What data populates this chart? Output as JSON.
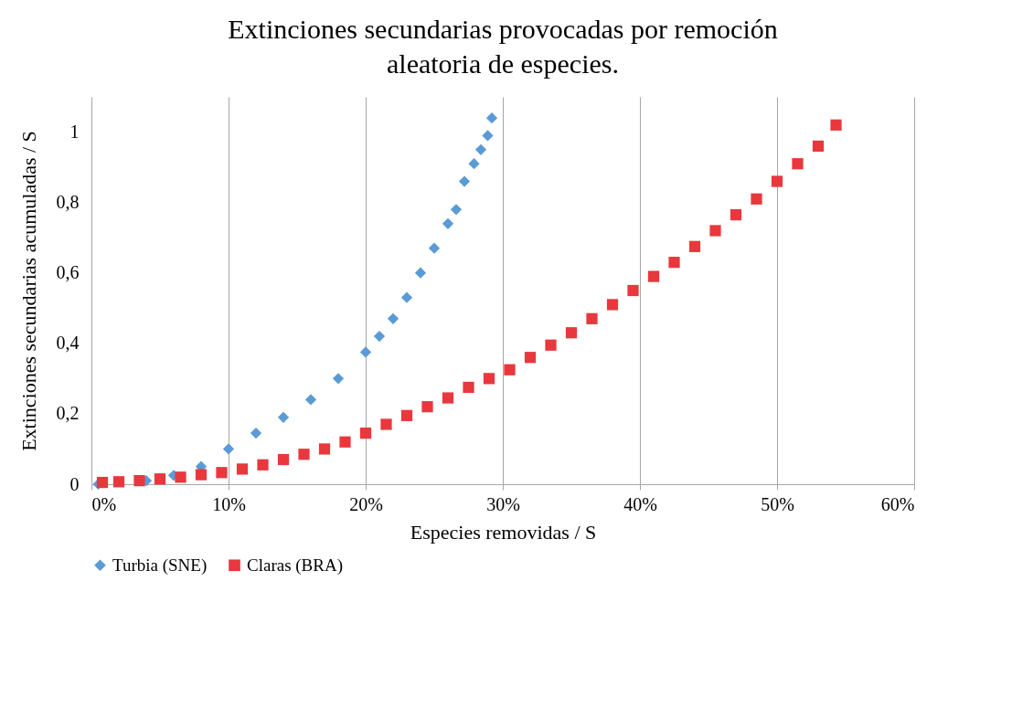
{
  "chart_data": {
    "type": "scatter",
    "title": "Extinciones secundarias provocadas por remoción aleatoria de especies.",
    "xlabel": "Especies removidas / S",
    "ylabel": "Extinciones secundarias acumuladas  / S",
    "xlim": [
      0,
      0.6
    ],
    "xticks": [
      {
        "value": 0,
        "label": "0%"
      },
      {
        "value": 0.1,
        "label": "10%"
      },
      {
        "value": 0.2,
        "label": "20%"
      },
      {
        "value": 0.3,
        "label": "30%"
      },
      {
        "value": 0.4,
        "label": "40%"
      },
      {
        "value": 0.5,
        "label": "50%"
      },
      {
        "value": 0.6,
        "label": "60%"
      }
    ],
    "ylim": [
      0,
      1.1
    ],
    "yticks": [
      0,
      {
        "value": 0.2,
        "label": "0,2"
      },
      {
        "value": 0.4,
        "label": "0,4"
      },
      {
        "value": 0.6,
        "label": "0,6"
      },
      {
        "value": 0.8,
        "label": "0,8"
      },
      1
    ],
    "grid": "x",
    "legend": "bottom",
    "series": [
      {
        "name": "Turbia (SNE)",
        "color": "#5b9bd5",
        "marker": "diamond",
        "x": [
          0.005,
          0.04,
          0.06,
          0.08,
          0.1,
          0.12,
          0.14,
          0.16,
          0.18,
          0.2,
          0.21,
          0.22,
          0.23,
          0.24,
          0.25,
          0.26,
          0.266,
          0.272,
          0.279,
          0.284,
          0.289,
          0.292
        ],
        "values": [
          0,
          0.01,
          0.025,
          0.05,
          0.1,
          0.145,
          0.19,
          0.24,
          0.3,
          0.375,
          0.42,
          0.47,
          0.53,
          0.6,
          0.67,
          0.74,
          0.78,
          0.86,
          0.91,
          0.95,
          0.99,
          1.04
        ]
      },
      {
        "name": "Claras (BRA)",
        "color": "#e8383d",
        "marker": "square",
        "x": [
          0.008,
          0.02,
          0.035,
          0.05,
          0.065,
          0.08,
          0.095,
          0.11,
          0.125,
          0.14,
          0.155,
          0.17,
          0.185,
          0.2,
          0.215,
          0.23,
          0.245,
          0.26,
          0.275,
          0.29,
          0.305,
          0.32,
          0.335,
          0.35,
          0.365,
          0.38,
          0.395,
          0.41,
          0.425,
          0.44,
          0.455,
          0.47,
          0.485,
          0.5,
          0.515,
          0.53,
          0.543
        ],
        "values": [
          0.005,
          0.007,
          0.01,
          0.015,
          0.02,
          0.027,
          0.033,
          0.043,
          0.055,
          0.07,
          0.085,
          0.1,
          0.12,
          0.145,
          0.17,
          0.195,
          0.22,
          0.245,
          0.275,
          0.3,
          0.325,
          0.36,
          0.395,
          0.43,
          0.47,
          0.51,
          0.55,
          0.59,
          0.63,
          0.675,
          0.72,
          0.765,
          0.81,
          0.86,
          0.91,
          0.96,
          1.02
        ]
      }
    ]
  }
}
